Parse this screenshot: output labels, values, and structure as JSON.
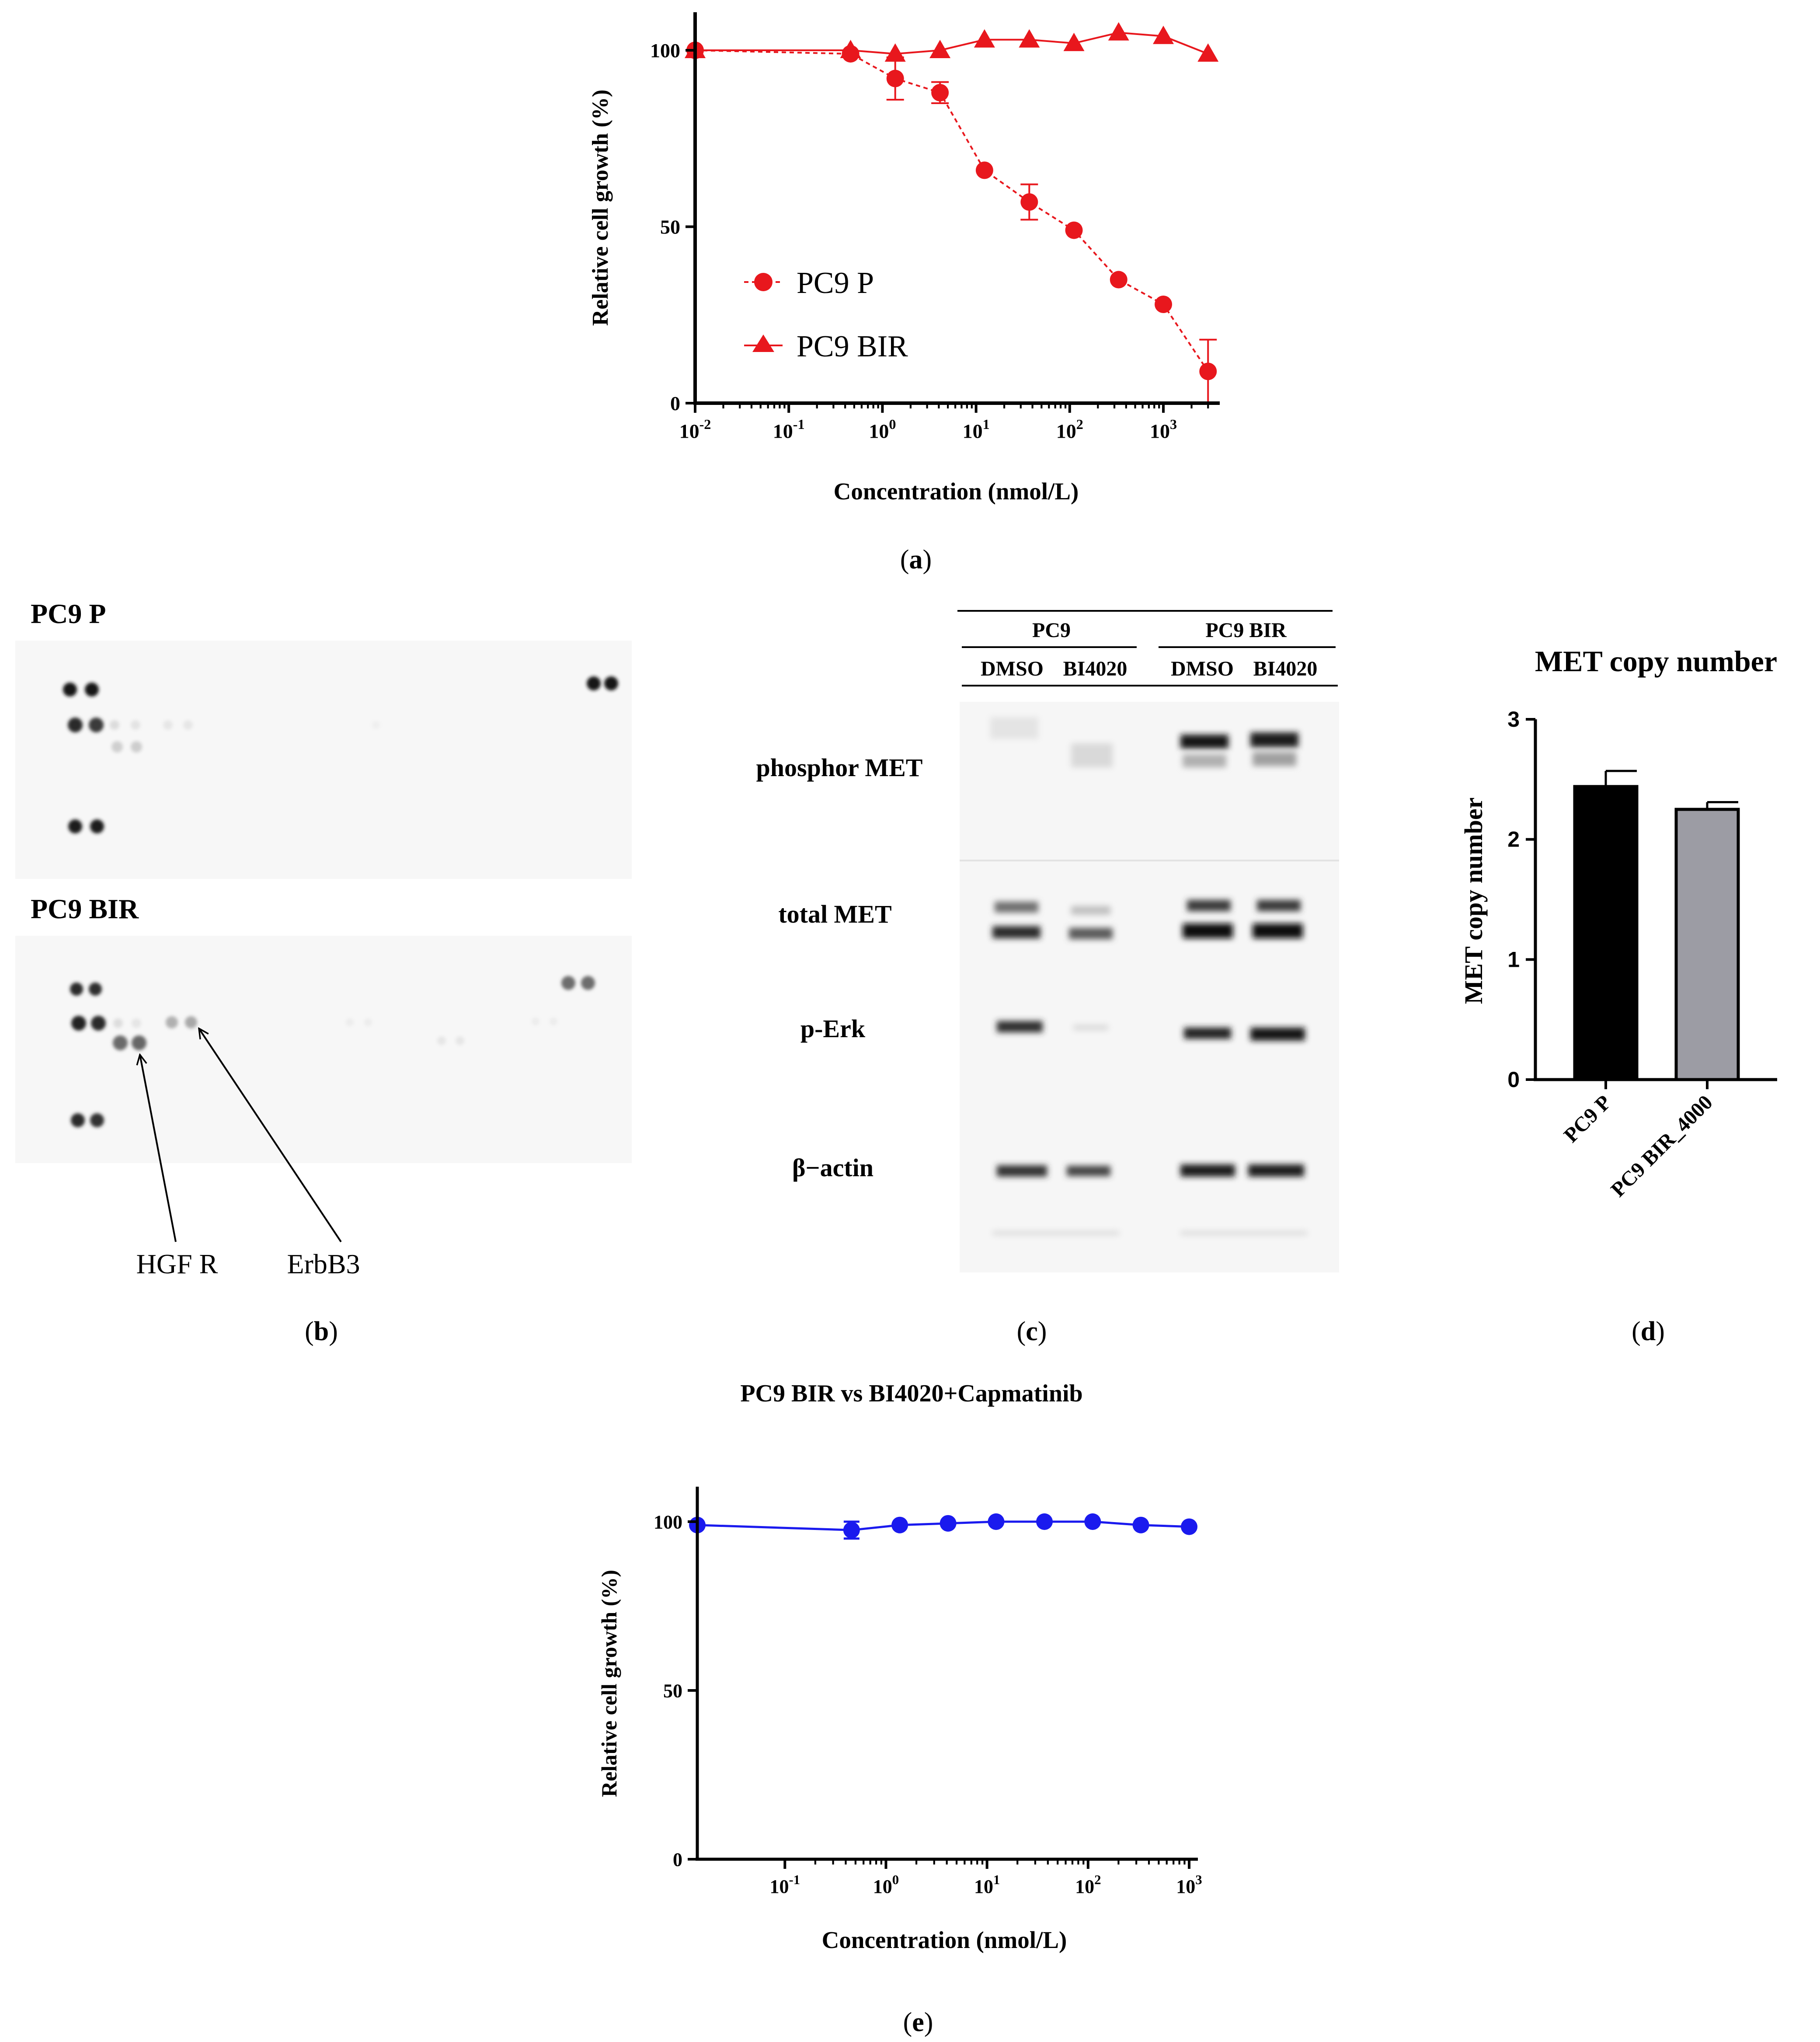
{
  "chart_data": [
    {
      "id": "a",
      "type": "scatter",
      "panel_label": "a",
      "xlabel": "Concentration (nmol/L)",
      "ylabel": "Relative cell growth (%)",
      "xscale": "log",
      "xlim": [
        0.01,
        4000
      ],
      "ylim": [
        0,
        100
      ],
      "x_ticks": [
        {
          "value": 0.01,
          "base": "10",
          "exp": "-2"
        },
        {
          "value": 0.1,
          "base": "10",
          "exp": "-1"
        },
        {
          "value": 1,
          "base": "10",
          "exp": "0"
        },
        {
          "value": 10,
          "base": "10",
          "exp": "1"
        },
        {
          "value": 100,
          "base": "10",
          "exp": "2"
        },
        {
          "value": 1000,
          "base": "10",
          "exp": "3"
        }
      ],
      "y_ticks": [
        0,
        50,
        100
      ],
      "legend": {
        "position": "center-left",
        "entries": [
          "PC9 P",
          "PC9 BIR"
        ]
      },
      "color": "#e8171d",
      "series": [
        {
          "name": "PC9 P",
          "marker": "circle",
          "fit": "dashed",
          "x": [
            0.01,
            0.457,
            1.37,
            4.12,
            12.3,
            37,
            111,
            333,
            1000,
            3000
          ],
          "y": [
            100,
            99,
            92,
            88,
            66,
            57,
            49,
            35,
            28,
            9
          ],
          "err": [
            0,
            0,
            6,
            3,
            0,
            5,
            0,
            0,
            0,
            9
          ]
        },
        {
          "name": "PC9 BIR",
          "marker": "triangle",
          "fit": "solid",
          "x": [
            0.01,
            0.457,
            1.37,
            4.12,
            12.3,
            37,
            111,
            333,
            1000,
            3000
          ],
          "y": [
            100,
            100,
            99,
            100,
            103,
            103,
            102,
            105,
            104,
            99
          ],
          "err": [
            0,
            0,
            0,
            0,
            0,
            0,
            0,
            0,
            0,
            0
          ]
        }
      ]
    },
    {
      "id": "d",
      "type": "bar",
      "panel_label": "d",
      "title": "MET copy number",
      "ylabel": "MET copy number",
      "ylim": [
        0,
        3
      ],
      "y_ticks": [
        0,
        1,
        2,
        3
      ],
      "categories": [
        "PC9 P",
        "PC9 BIR_4000"
      ],
      "values": [
        2.44,
        2.25
      ],
      "errors": [
        0.13,
        0.06
      ],
      "colors": [
        "#000000",
        "#9c9ca4"
      ]
    },
    {
      "id": "e",
      "type": "scatter",
      "panel_label": "e",
      "title": "PC9 BIR vs BI4020+Capmatinib",
      "xlabel": "Concentration (nmol/L)",
      "ylabel": "Relative cell growth (%)",
      "xscale": "log",
      "xlim": [
        0.0136,
        1000
      ],
      "ylim": [
        0,
        100
      ],
      "x_ticks": [
        {
          "value": 0.1,
          "base": "10",
          "exp": "-1"
        },
        {
          "value": 1,
          "base": "10",
          "exp": "0"
        },
        {
          "value": 10,
          "base": "10",
          "exp": "1"
        },
        {
          "value": 100,
          "base": "10",
          "exp": "2"
        },
        {
          "value": 1000,
          "base": "10",
          "exp": "3"
        }
      ],
      "y_ticks": [
        0,
        50,
        100
      ],
      "color": "#1a1aee",
      "series": [
        {
          "name": "PC9 BIR",
          "marker": "circle",
          "fit": "solid",
          "x": [
            0.0136,
            0.457,
            1.37,
            4.12,
            12.3,
            37,
            111,
            333,
            1000
          ],
          "y": [
            99,
            97.5,
            99,
            99.5,
            100,
            100,
            100,
            99,
            98.5
          ],
          "err": [
            0,
            2.5,
            0,
            0,
            0,
            0,
            0,
            0,
            0
          ]
        }
      ]
    }
  ],
  "panel_b": {
    "label": "b",
    "blot_top_title": "PC9 P",
    "blot_bottom_title": "PC9 BIR",
    "arrow_labels": [
      "HGF R",
      "ErbB3"
    ]
  },
  "panel_c": {
    "label": "c",
    "group_labels": [
      "PC9",
      "PC9 BIR"
    ],
    "lane_labels": [
      "DMSO",
      "BI4020",
      "DMSO",
      "BI4020"
    ],
    "row_labels": [
      "phosphor MET",
      "total MET",
      "p-Erk",
      "β−actin"
    ]
  }
}
